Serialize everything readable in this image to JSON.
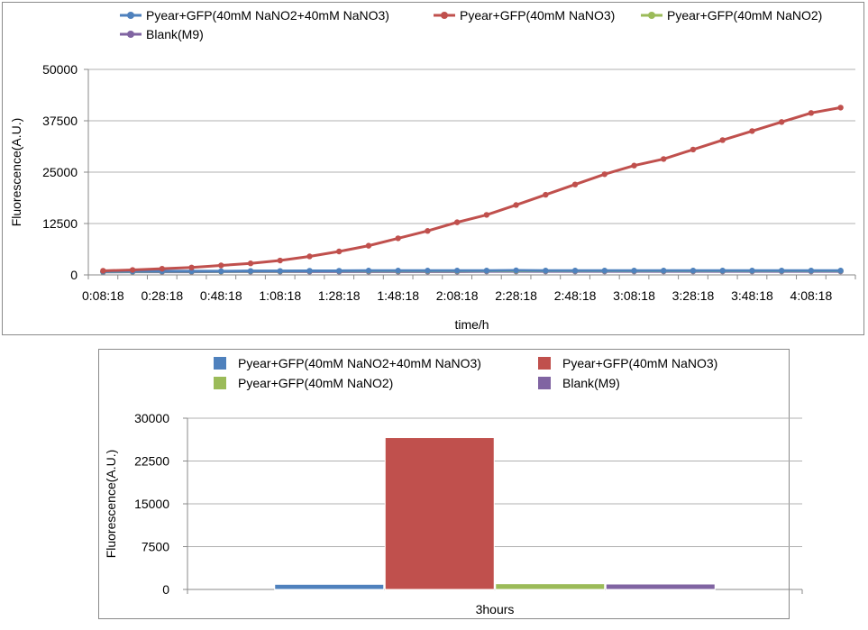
{
  "colors": {
    "s1": "#4F81BD",
    "s2": "#C0504D",
    "s3": "#9BBB59",
    "s4": "#8064A2",
    "grid": "#b0b0b0",
    "axis": "#8a8a8a"
  },
  "chart_data": [
    {
      "type": "line",
      "title": "",
      "xlabel": "time/h",
      "ylabel": "Fluorescence(A.U.)",
      "ylim": [
        0,
        50000
      ],
      "yticks": [
        "0",
        "12500",
        "25000",
        "37500",
        "50000"
      ],
      "ytick_values": [
        0,
        12500,
        25000,
        37500,
        50000
      ],
      "grid": true,
      "legend": "top",
      "x": [
        "0:08:18",
        "0:18:18",
        "0:28:18",
        "0:38:18",
        "0:48:18",
        "0:58:18",
        "1:08:18",
        "1:18:18",
        "1:28:18",
        "1:38:18",
        "1:48:18",
        "1:58:18",
        "2:08:18",
        "2:18:18",
        "2:28:18",
        "2:38:18",
        "2:48:18",
        "2:58:18",
        "3:08:18",
        "3:18:18",
        "3:28:18",
        "3:38:18",
        "3:48:18",
        "3:58:18",
        "4:08:18",
        "4:18:18"
      ],
      "xtick_labels": [
        "0:08:18",
        "0:28:18",
        "0:48:18",
        "1:08:18",
        "1:28:18",
        "1:48:18",
        "2:08:18",
        "2:28:18",
        "2:48:18",
        "3:08:18",
        "3:28:18",
        "3:48:18",
        "4:08:18"
      ],
      "series": [
        {
          "name": "Pyear+GFP(40mM NaNO2+40mM NaNO3)",
          "values": [
            800,
            850,
            900,
            900,
            900,
            950,
            950,
            1000,
            1000,
            1050,
            1050,
            1050,
            1050,
            1050,
            1100,
            1050,
            1050,
            1050,
            1050,
            1050,
            1050,
            1050,
            1050,
            1050,
            1050,
            1050
          ]
        },
        {
          "name": "Pyear+GFP(40mM NaNO3)",
          "values": [
            1000,
            1200,
            1500,
            1800,
            2300,
            2800,
            3500,
            4500,
            5700,
            7100,
            8900,
            10700,
            12800,
            14600,
            17000,
            19500,
            22000,
            24500,
            26600,
            28200,
            30500,
            32800,
            35000,
            37200,
            39400,
            40700
          ]
        },
        {
          "name": "Pyear+GFP(40mM NaNO2)",
          "values": [
            750,
            800,
            850,
            850,
            850,
            900,
            900,
            950,
            950,
            950,
            950,
            950,
            950,
            1000,
            1000,
            1000,
            1000,
            1000,
            1000,
            1000,
            1000,
            1000,
            1000,
            1000,
            1000,
            1000
          ]
        },
        {
          "name": "Blank(M9)",
          "values": [
            700,
            750,
            750,
            750,
            800,
            800,
            800,
            800,
            800,
            800,
            800,
            800,
            800,
            850,
            850,
            850,
            850,
            850,
            850,
            850,
            850,
            850,
            850,
            850,
            850,
            850
          ]
        }
      ]
    },
    {
      "type": "bar",
      "title": "",
      "xlabel": "",
      "ylabel": "Fluorescence(A.U.)",
      "ylim": [
        0,
        30000
      ],
      "yticks": [
        "0",
        "7500",
        "15000",
        "22500",
        "30000"
      ],
      "ytick_values": [
        0,
        7500,
        15000,
        22500,
        30000
      ],
      "grid": true,
      "legend": "top",
      "categories": [
        "3hours"
      ],
      "series": [
        {
          "name": "Pyear+GFP(40mM NaNO2+40mM NaNO3)",
          "values": [
            900
          ]
        },
        {
          "name": "Pyear+GFP(40mM NaNO3)",
          "values": [
            26600
          ]
        },
        {
          "name": "Pyear+GFP(40mM NaNO2)",
          "values": [
            1000
          ]
        },
        {
          "name": "Blank(M9)",
          "values": [
            950
          ]
        }
      ]
    }
  ]
}
